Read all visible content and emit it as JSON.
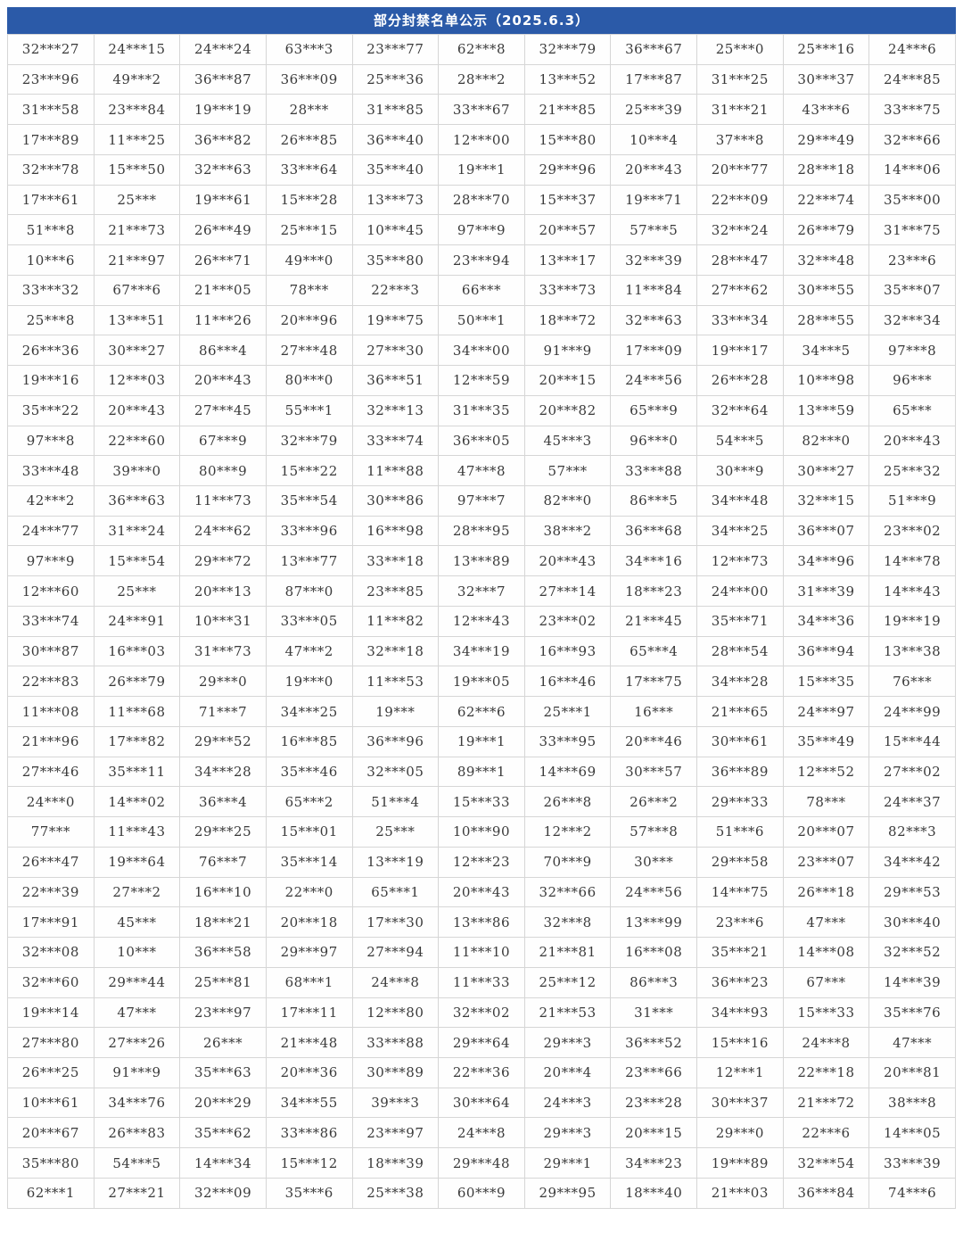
{
  "header": {
    "title": "部分封禁名单公示（2025.6.3）"
  },
  "colors": {
    "header_bg": "#2b5aa8",
    "header_text": "#ffffff",
    "border": "#d6d6d6",
    "cell_text": "#3a3a3a"
  },
  "table": {
    "rows": [
      [
        "32***27",
        "24***15",
        "24***24",
        "63***3",
        "23***77",
        "62***8",
        "32***79",
        "36***67",
        "25***0",
        "25***16",
        "24***6"
      ],
      [
        "23***96",
        "49***2",
        "36***87",
        "36***09",
        "25***36",
        "28***2",
        "13***52",
        "17***87",
        "31***25",
        "30***37",
        "24***85"
      ],
      [
        "31***58",
        "23***84",
        "19***19",
        "28***",
        "31***85",
        "33***67",
        "21***85",
        "25***39",
        "31***21",
        "43***6",
        "33***75"
      ],
      [
        "17***89",
        "11***25",
        "36***82",
        "26***85",
        "36***40",
        "12***00",
        "15***80",
        "10***4",
        "37***8",
        "29***49",
        "32***66"
      ],
      [
        "32***78",
        "15***50",
        "32***63",
        "33***64",
        "35***40",
        "19***1",
        "29***96",
        "20***43",
        "20***77",
        "28***18",
        "14***06"
      ],
      [
        "17***61",
        "25***",
        "19***61",
        "15***28",
        "13***73",
        "28***70",
        "15***37",
        "19***71",
        "22***09",
        "22***74",
        "35***00"
      ],
      [
        "51***8",
        "21***73",
        "26***49",
        "25***15",
        "10***45",
        "97***9",
        "20***57",
        "57***5",
        "32***24",
        "26***79",
        "31***75"
      ],
      [
        "10***6",
        "21***97",
        "26***71",
        "49***0",
        "35***80",
        "23***94",
        "13***17",
        "32***39",
        "28***47",
        "32***48",
        "23***6"
      ],
      [
        "33***32",
        "67***6",
        "21***05",
        "78***",
        "22***3",
        "66***",
        "33***73",
        "11***84",
        "27***62",
        "30***55",
        "35***07"
      ],
      [
        "25***8",
        "13***51",
        "11***26",
        "20***96",
        "19***75",
        "50***1",
        "18***72",
        "32***63",
        "33***34",
        "28***55",
        "32***34"
      ],
      [
        "26***36",
        "30***27",
        "86***4",
        "27***48",
        "27***30",
        "34***00",
        "91***9",
        "17***09",
        "19***17",
        "34***5",
        "97***8"
      ],
      [
        "19***16",
        "12***03",
        "20***43",
        "80***0",
        "36***51",
        "12***59",
        "20***15",
        "24***56",
        "26***28",
        "10***98",
        "96***"
      ],
      [
        "35***22",
        "20***43",
        "27***45",
        "55***1",
        "32***13",
        "31***35",
        "20***82",
        "65***9",
        "32***64",
        "13***59",
        "65***"
      ],
      [
        "97***8",
        "22***60",
        "67***9",
        "32***79",
        "33***74",
        "36***05",
        "45***3",
        "96***0",
        "54***5",
        "82***0",
        "20***43"
      ],
      [
        "33***48",
        "39***0",
        "80***9",
        "15***22",
        "11***88",
        "47***8",
        "57***",
        "33***88",
        "30***9",
        "30***27",
        "25***32"
      ],
      [
        "42***2",
        "36***63",
        "11***73",
        "35***54",
        "30***86",
        "97***7",
        "82***0",
        "86***5",
        "34***48",
        "32***15",
        "51***9"
      ],
      [
        "24***77",
        "31***24",
        "24***62",
        "33***96",
        "16***98",
        "28***95",
        "38***2",
        "36***68",
        "34***25",
        "36***07",
        "23***02"
      ],
      [
        "97***9",
        "15***54",
        "29***72",
        "13***77",
        "33***18",
        "13***89",
        "20***43",
        "34***16",
        "12***73",
        "34***96",
        "14***78"
      ],
      [
        "12***60",
        "25***",
        "20***13",
        "87***0",
        "23***85",
        "32***7",
        "27***14",
        "18***23",
        "24***00",
        "31***39",
        "14***43"
      ],
      [
        "33***74",
        "24***91",
        "10***31",
        "33***05",
        "11***82",
        "12***43",
        "23***02",
        "21***45",
        "35***71",
        "34***36",
        "19***19"
      ],
      [
        "30***87",
        "16***03",
        "31***73",
        "47***2",
        "32***18",
        "34***19",
        "16***93",
        "65***4",
        "28***54",
        "36***94",
        "13***38"
      ],
      [
        "22***83",
        "26***79",
        "29***0",
        "19***0",
        "11***53",
        "19***05",
        "16***46",
        "17***75",
        "34***28",
        "15***35",
        "76***"
      ],
      [
        "11***08",
        "11***68",
        "71***7",
        "34***25",
        "19***",
        "62***6",
        "25***1",
        "16***",
        "21***65",
        "24***97",
        "24***99"
      ],
      [
        "21***96",
        "17***82",
        "29***52",
        "16***85",
        "36***96",
        "19***1",
        "33***95",
        "20***46",
        "30***61",
        "35***49",
        "15***44"
      ],
      [
        "27***46",
        "35***11",
        "34***28",
        "35***46",
        "32***05",
        "89***1",
        "14***69",
        "30***57",
        "36***89",
        "12***52",
        "27***02"
      ],
      [
        "24***0",
        "14***02",
        "36***4",
        "65***2",
        "51***4",
        "15***33",
        "26***8",
        "26***2",
        "29***33",
        "78***",
        "24***37"
      ],
      [
        "77***",
        "11***43",
        "29***25",
        "15***01",
        "25***",
        "10***90",
        "12***2",
        "57***8",
        "51***6",
        "20***07",
        "82***3"
      ],
      [
        "26***47",
        "19***64",
        "76***7",
        "35***14",
        "13***19",
        "12***23",
        "70***9",
        "30***",
        "29***58",
        "23***07",
        "34***42"
      ],
      [
        "22***39",
        "27***2",
        "16***10",
        "22***0",
        "65***1",
        "20***43",
        "32***66",
        "24***56",
        "14***75",
        "26***18",
        "29***53"
      ],
      [
        "17***91",
        "45***",
        "18***21",
        "20***18",
        "17***30",
        "13***86",
        "32***8",
        "13***99",
        "23***6",
        "47***",
        "30***40"
      ],
      [
        "32***08",
        "10***",
        "36***58",
        "29***97",
        "27***94",
        "11***10",
        "21***81",
        "16***08",
        "35***21",
        "14***08",
        "32***52"
      ],
      [
        "32***60",
        "29***44",
        "25***81",
        "68***1",
        "24***8",
        "11***33",
        "25***12",
        "86***3",
        "36***23",
        "67***",
        "14***39"
      ],
      [
        "19***14",
        "47***",
        "23***97",
        "17***11",
        "12***80",
        "32***02",
        "21***53",
        "31***",
        "34***93",
        "15***33",
        "35***76"
      ],
      [
        "27***80",
        "27***26",
        "26***",
        "21***48",
        "33***88",
        "29***64",
        "29***3",
        "36***52",
        "15***16",
        "24***8",
        "47***"
      ],
      [
        "26***25",
        "91***9",
        "35***63",
        "20***36",
        "30***89",
        "22***36",
        "20***4",
        "23***66",
        "12***1",
        "22***18",
        "20***81"
      ],
      [
        "10***61",
        "34***76",
        "20***29",
        "34***55",
        "39***3",
        "30***64",
        "24***3",
        "23***28",
        "30***37",
        "21***72",
        "38***8"
      ],
      [
        "20***67",
        "26***83",
        "35***62",
        "33***86",
        "23***97",
        "24***8",
        "29***3",
        "20***15",
        "29***0",
        "22***6",
        "14***05"
      ],
      [
        "35***80",
        "54***5",
        "14***34",
        "15***12",
        "18***39",
        "29***48",
        "29***1",
        "34***23",
        "19***89",
        "32***54",
        "33***39"
      ],
      [
        "62***1",
        "27***21",
        "32***09",
        "35***6",
        "25***38",
        "60***9",
        "29***95",
        "18***40",
        "21***03",
        "36***84",
        "74***6"
      ]
    ]
  }
}
